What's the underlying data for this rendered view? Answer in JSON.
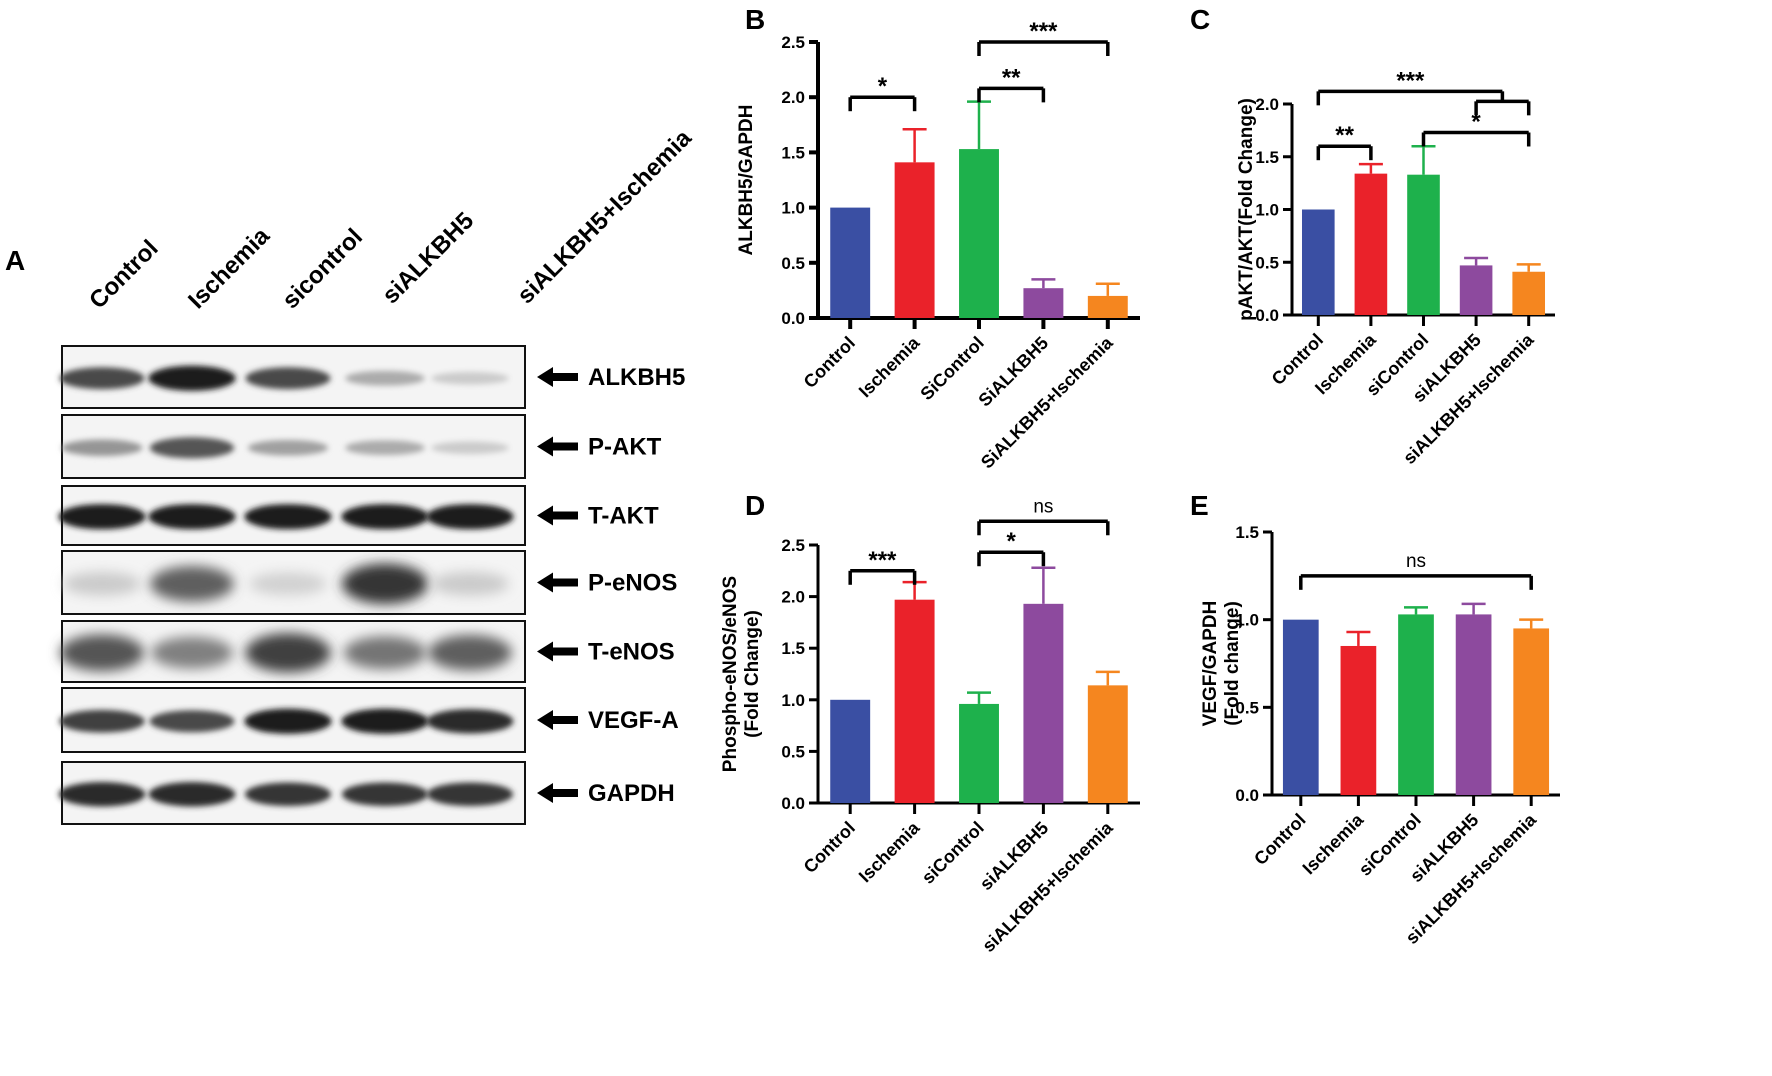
{
  "figure": {
    "panel_letters": [
      "A",
      "B",
      "C",
      "D",
      "E"
    ],
    "colors": [
      "#3a4fa3",
      "#ea222a",
      "#1eb14c",
      "#8d4a9e",
      "#f5861f"
    ]
  },
  "blot": {
    "panel": "A",
    "lanes": [
      "Control",
      "Ischemia",
      "sicontrol",
      "siALKBH5",
      "siALKBH5+Ischemia"
    ],
    "bands": [
      {
        "label": "ALKBH5",
        "intensities": [
          0.75,
          0.95,
          0.75,
          0.3,
          0.15
        ]
      },
      {
        "label": "P-AKT",
        "intensities": [
          0.4,
          0.7,
          0.35,
          0.3,
          0.15
        ]
      },
      {
        "label": "T-AKT",
        "intensities": [
          0.95,
          0.95,
          0.95,
          0.95,
          0.95
        ]
      },
      {
        "label": "P-eNOS",
        "intensities": [
          0.15,
          0.65,
          0.12,
          0.85,
          0.15
        ]
      },
      {
        "label": "T-eNOS",
        "intensities": [
          0.7,
          0.5,
          0.8,
          0.55,
          0.65
        ]
      },
      {
        "label": "VEGF-A",
        "intensities": [
          0.8,
          0.75,
          0.95,
          0.95,
          0.9
        ]
      },
      {
        "label": "GAPDH",
        "intensities": [
          0.9,
          0.9,
          0.85,
          0.85,
          0.85
        ]
      }
    ]
  },
  "chart_data": [
    {
      "panel": "B",
      "type": "bar",
      "ylabel": "ALKBH5/GAPDH",
      "ylim": [
        0,
        2.5
      ],
      "yticks": [
        "0.0",
        "0.5",
        "1.0",
        "1.5",
        "2.0",
        "2.5"
      ],
      "categories": [
        "Control",
        "Ischemia",
        "SiControl",
        "SiALKBH5",
        "SiALKBH5+Ischemia"
      ],
      "values": [
        1.0,
        1.41,
        1.53,
        0.27,
        0.2
      ],
      "errors": [
        0.0,
        0.3,
        0.43,
        0.08,
        0.11
      ],
      "significance": [
        {
          "from": 0,
          "to": 1,
          "label": "*",
          "level": 2.0
        },
        {
          "from": 2,
          "to": 3,
          "label": "**",
          "level": 2.08
        },
        {
          "from": 2,
          "to": 4,
          "label": "***",
          "level": 2.5
        }
      ]
    },
    {
      "panel": "C",
      "type": "bar",
      "ylabel": "pAKT/AKT(Fold Change)",
      "ylim": [
        0,
        2.0
      ],
      "yticks": [
        "0.0",
        "0.5",
        "1.0",
        "1.5",
        "2.0"
      ],
      "categories": [
        "Control",
        "Ischemia",
        "siControl",
        "siALKBH5",
        "siALKBH5+Ischemia"
      ],
      "values": [
        1.0,
        1.34,
        1.33,
        0.47,
        0.41
      ],
      "errors": [
        0.0,
        0.09,
        0.27,
        0.07,
        0.07
      ],
      "significance": [
        {
          "from": 0,
          "to": 1,
          "label": "**",
          "level": 1.6
        },
        {
          "from": 2,
          "to": 4,
          "label": "*",
          "level": 1.73
        },
        {
          "from": 0,
          "to": "3-4",
          "label": "***",
          "level": 2.12
        }
      ]
    },
    {
      "panel": "D",
      "type": "bar",
      "ylabel": "Phospho-eNOS/eNOS (Fold Change)",
      "ylim": [
        0,
        2.5
      ],
      "yticks": [
        "0.0",
        "0.5",
        "1.0",
        "1.5",
        "2.0",
        "2.5"
      ],
      "categories": [
        "Control",
        "Ischemia",
        "siControl",
        "siALKBH5",
        "siALKBH5+Ischemia"
      ],
      "values": [
        1.0,
        1.97,
        0.96,
        1.93,
        1.14
      ],
      "errors": [
        0.0,
        0.17,
        0.11,
        0.35,
        0.13
      ],
      "significance": [
        {
          "from": 0,
          "to": 1,
          "label": "***",
          "level": 2.25
        },
        {
          "from": 2,
          "to": 3,
          "label": "*",
          "level": 2.43
        },
        {
          "from": 2,
          "to": 4,
          "label": "ns",
          "level": 2.73
        }
      ]
    },
    {
      "panel": "E",
      "type": "bar",
      "ylabel": "VEGF/GAPDH (Fold change)",
      "ylim": [
        0,
        1.5
      ],
      "yticks": [
        "0.0",
        "0.5",
        "1.0",
        "1.5"
      ],
      "categories": [
        "Control",
        "Ischemia",
        "siControl",
        "siALKBH5",
        "siALKBH5+Ischemia"
      ],
      "values": [
        1.0,
        0.85,
        1.03,
        1.03,
        0.95
      ],
      "errors": [
        0.0,
        0.08,
        0.04,
        0.06,
        0.05
      ],
      "significance": [
        {
          "from": 0,
          "to": 4,
          "label": "ns",
          "level": 1.25
        }
      ]
    }
  ]
}
